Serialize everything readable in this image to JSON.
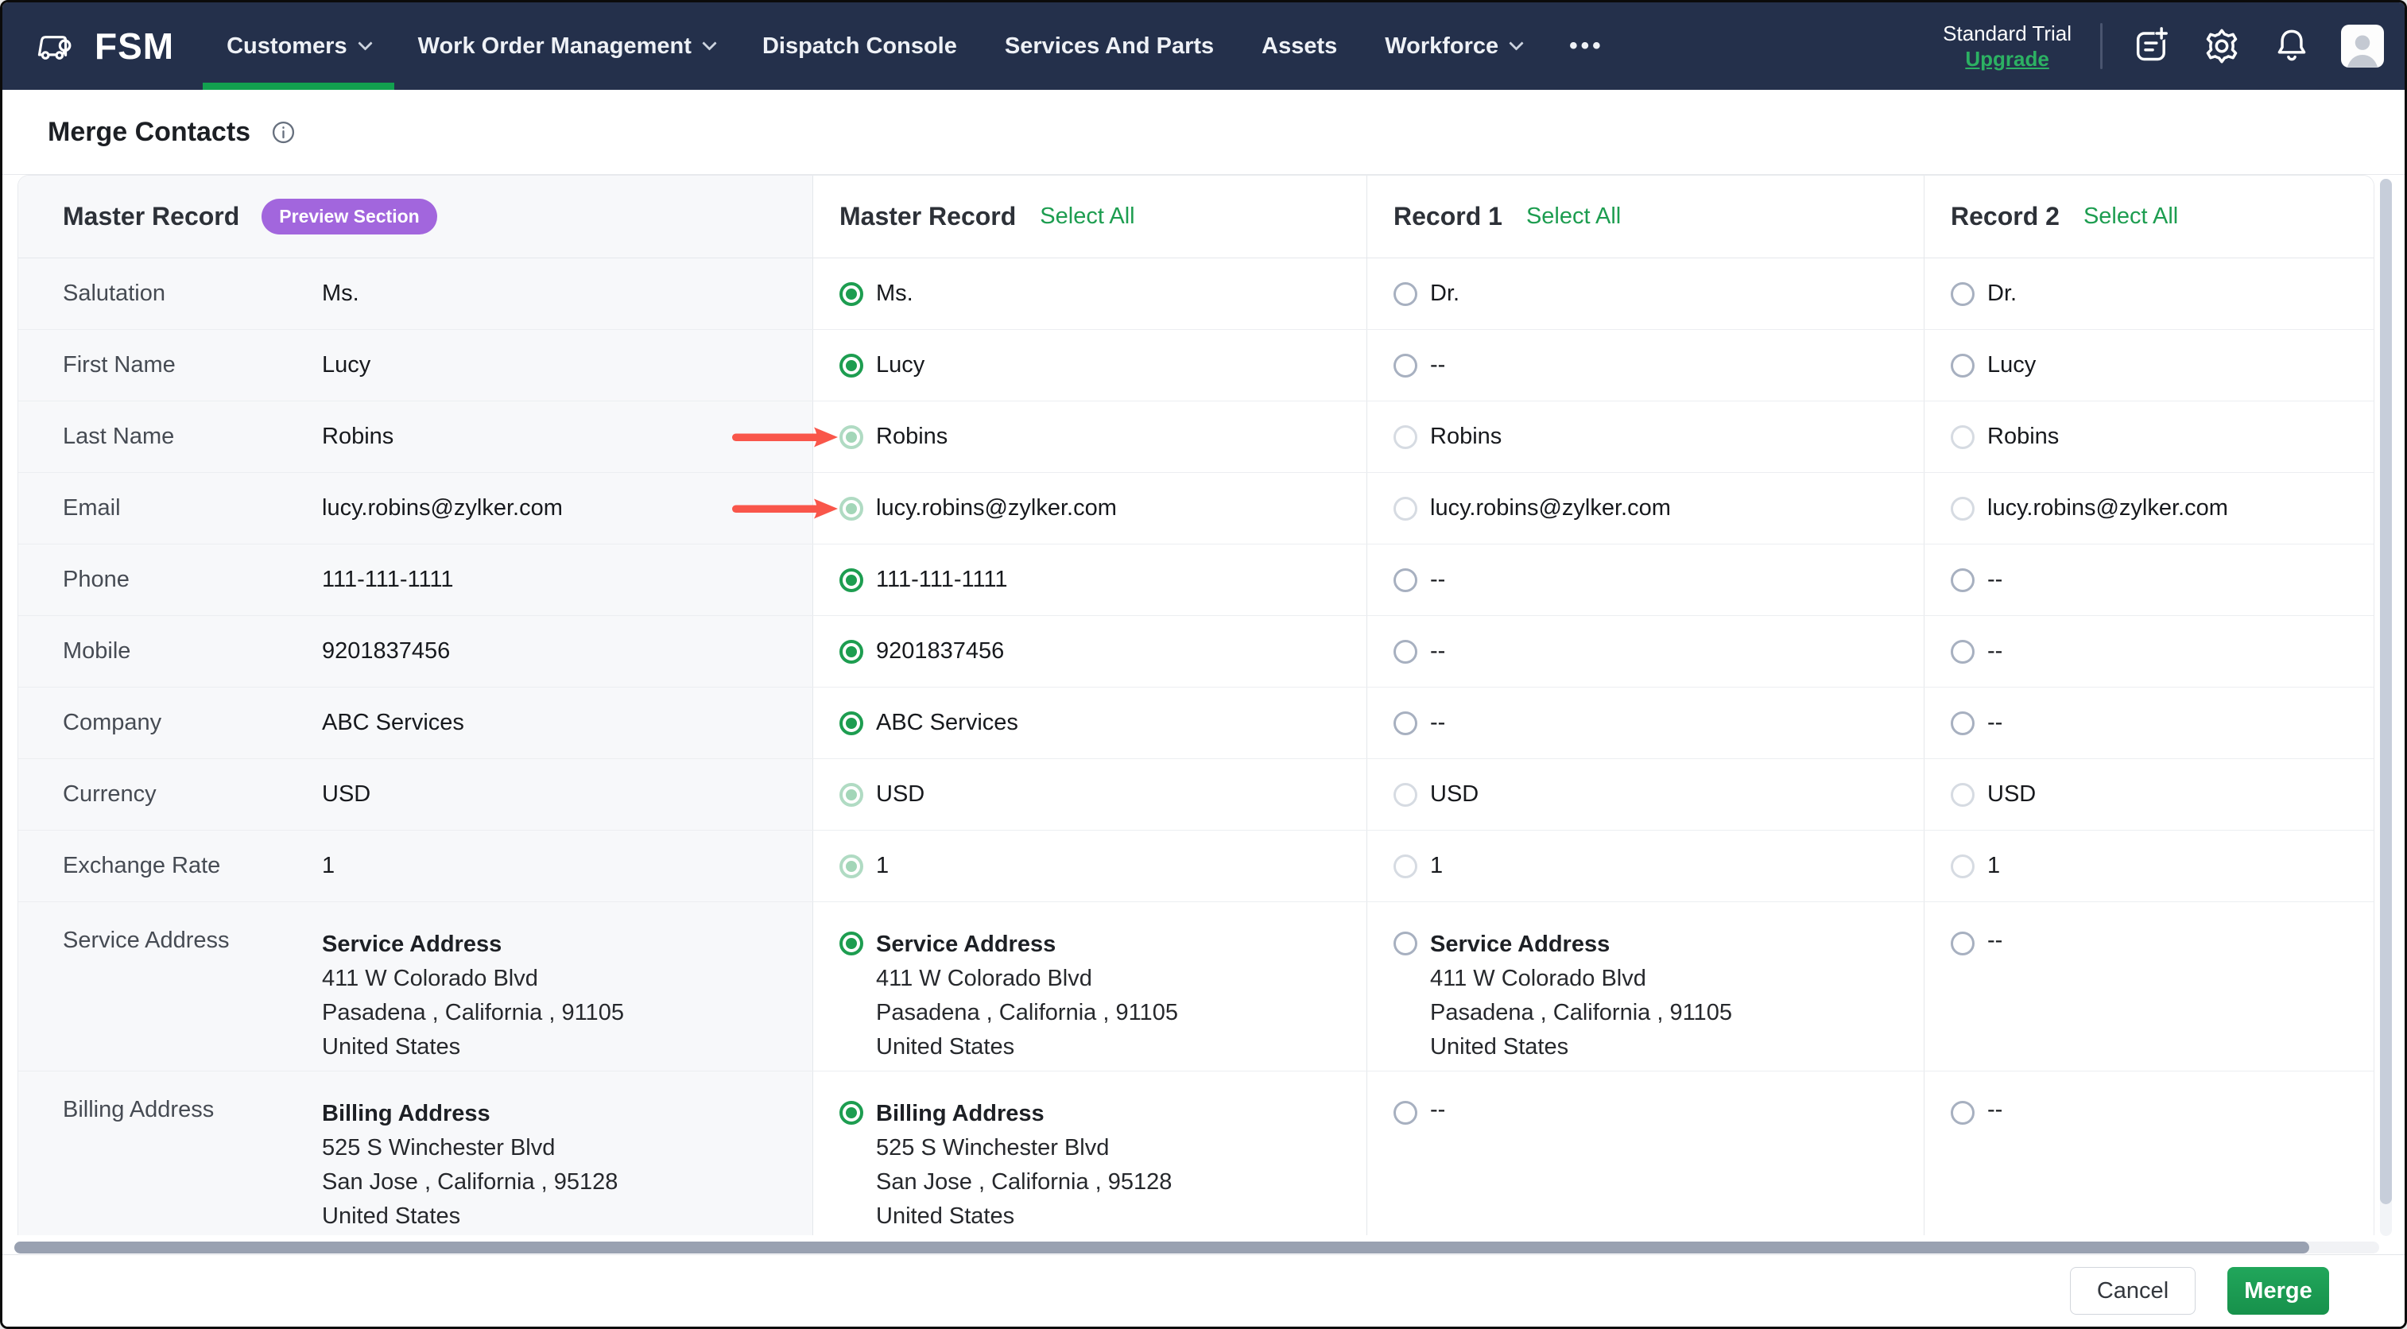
{
  "nav": {
    "brand": "FSM",
    "items": [
      {
        "label": "Customers",
        "caret": true,
        "active": true
      },
      {
        "label": "Work Order Management",
        "caret": true
      },
      {
        "label": "Dispatch Console"
      },
      {
        "label": "Services And Parts"
      },
      {
        "label": "Assets"
      },
      {
        "label": "Workforce",
        "caret": true
      },
      {
        "label": "•••",
        "more": true
      }
    ],
    "trial_label": "Standard Trial",
    "upgrade_label": "Upgrade",
    "icons": [
      "note-add-icon",
      "settings-gear-icon",
      "notifications-bell-icon",
      "user-avatar"
    ]
  },
  "page": {
    "title": "Merge Contacts"
  },
  "table": {
    "columns": [
      {
        "title": "Master Record",
        "badge": "Preview Section"
      },
      {
        "title": "Master Record",
        "action": "Select All"
      },
      {
        "title": "Record 1",
        "action": "Select All"
      },
      {
        "title": "Record 2",
        "action": "Select All"
      }
    ],
    "rows": [
      {
        "label": "Salutation",
        "preview": {
          "text": "Ms."
        },
        "cells": [
          {
            "radio": "on",
            "text": "Ms."
          },
          {
            "radio": "off",
            "text": "Dr."
          },
          {
            "radio": "off",
            "text": "Dr."
          }
        ]
      },
      {
        "label": "First Name",
        "preview": {
          "text": "Lucy"
        },
        "cells": [
          {
            "radio": "on",
            "text": "Lucy"
          },
          {
            "radio": "off",
            "text": "--"
          },
          {
            "radio": "off",
            "text": "Lucy"
          }
        ]
      },
      {
        "label": "Last Name",
        "arrow": true,
        "preview": {
          "text": "Robins"
        },
        "cells": [
          {
            "radio": "on-faded",
            "text": "Robins"
          },
          {
            "radio": "off-faded",
            "text": "Robins"
          },
          {
            "radio": "off-faded",
            "text": "Robins"
          }
        ]
      },
      {
        "label": "Email",
        "arrow": true,
        "preview": {
          "text": "lucy.robins@zylker.com"
        },
        "cells": [
          {
            "radio": "on-faded",
            "text": "lucy.robins@zylker.com"
          },
          {
            "radio": "off-faded",
            "text": "lucy.robins@zylker.com"
          },
          {
            "radio": "off-faded",
            "text": "lucy.robins@zylker.com"
          }
        ]
      },
      {
        "label": "Phone",
        "preview": {
          "text": "111-111-1111"
        },
        "cells": [
          {
            "radio": "on",
            "text": "111-111-1111"
          },
          {
            "radio": "off",
            "text": "--"
          },
          {
            "radio": "off",
            "text": "--"
          }
        ]
      },
      {
        "label": "Mobile",
        "preview": {
          "text": "9201837456"
        },
        "cells": [
          {
            "radio": "on",
            "text": "9201837456"
          },
          {
            "radio": "off",
            "text": "--"
          },
          {
            "radio": "off",
            "text": "--"
          }
        ]
      },
      {
        "label": "Company",
        "preview": {
          "text": "ABC Services"
        },
        "cells": [
          {
            "radio": "on",
            "text": "ABC Services"
          },
          {
            "radio": "off",
            "text": "--"
          },
          {
            "radio": "off",
            "text": "--"
          }
        ]
      },
      {
        "label": "Currency",
        "preview": {
          "text": "USD"
        },
        "cells": [
          {
            "radio": "on-faded",
            "text": "USD"
          },
          {
            "radio": "off-faded",
            "text": "USD"
          },
          {
            "radio": "off-faded",
            "text": "USD"
          }
        ]
      },
      {
        "label": "Exchange Rate",
        "preview": {
          "text": "1"
        },
        "cells": [
          {
            "radio": "on-faded",
            "text": "1"
          },
          {
            "radio": "off-faded",
            "text": "1"
          },
          {
            "radio": "off-faded",
            "text": "1"
          }
        ]
      },
      {
        "label": "Service Address",
        "tall": true,
        "preview": {
          "address": {
            "title": "Service Address",
            "lines": [
              "411 W Colorado Blvd",
              "Pasadena , California , 91105",
              "United States"
            ]
          }
        },
        "cells": [
          {
            "radio": "on",
            "address": {
              "title": "Service Address",
              "lines": [
                "411 W Colorado Blvd",
                "Pasadena , California , 91105",
                "United States"
              ]
            }
          },
          {
            "radio": "off",
            "address": {
              "title": "Service Address",
              "lines": [
                "411 W Colorado Blvd",
                "Pasadena , California , 91105",
                "United States"
              ]
            }
          },
          {
            "radio": "off",
            "text": "--"
          }
        ]
      },
      {
        "label": "Billing Address",
        "tall": true,
        "preview": {
          "address": {
            "title": "Billing Address",
            "lines": [
              "525 S Winchester Blvd",
              "San Jose , California , 95128",
              "United States"
            ]
          }
        },
        "cells": [
          {
            "radio": "on",
            "address": {
              "title": "Billing Address",
              "lines": [
                "525 S Winchester Blvd",
                "San Jose , California , 95128",
                "United States"
              ]
            }
          },
          {
            "radio": "off",
            "text": "--"
          },
          {
            "radio": "off",
            "text": "--"
          }
        ]
      }
    ]
  },
  "footer": {
    "cancel_label": "Cancel",
    "merge_label": "Merge"
  },
  "colors": {
    "nav_bg": "#24304b",
    "accent_green": "#1d9d50",
    "active_tab_green": "#12a04f",
    "badge_purple": "#a266dd",
    "arrow_red": "#f9564a",
    "preview_column_bg": "#f7f8fa"
  }
}
